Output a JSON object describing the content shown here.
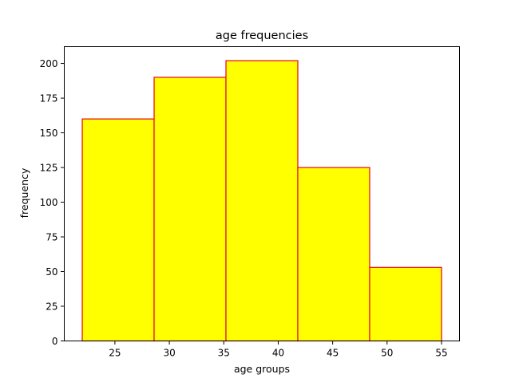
{
  "chart_data": {
    "type": "bar",
    "title": "age frequencies",
    "xlabel": "age groups",
    "ylabel": "frequency",
    "bin_edges": [
      22,
      28.6,
      35.2,
      41.8,
      48.4,
      55
    ],
    "values": [
      160,
      190,
      202,
      125,
      53
    ],
    "xlim": [
      20.35,
      56.65
    ],
    "ylim": [
      0,
      212.1
    ],
    "x_ticks": [
      25,
      30,
      35,
      40,
      45,
      50,
      55
    ],
    "y_ticks": [
      0,
      25,
      50,
      75,
      100,
      125,
      150,
      175,
      200
    ],
    "grid": false,
    "bar_fill_color": "#ffff00",
    "bar_edge_color": "#e8001c",
    "axes_color": "#000000"
  }
}
